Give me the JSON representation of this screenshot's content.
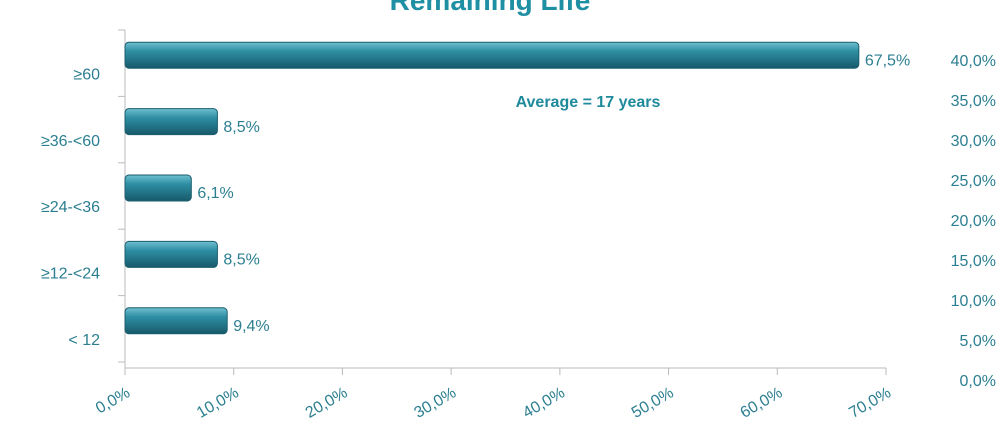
{
  "chart_data": {
    "type": "barh",
    "title": "Remaining Life",
    "annotation": "Average = 17 years",
    "categories": [
      "≥60",
      "≥36-<60",
      "≥24-<36",
      "≥12-<24",
      "< 12"
    ],
    "values": [
      67.5,
      8.5,
      6.1,
      8.5,
      9.4
    ],
    "value_labels": [
      "67,5%",
      "8,5%",
      "6,1%",
      "8,5%",
      "9,4%"
    ],
    "color": "#2e8ea3",
    "xlim": [
      0,
      70
    ],
    "xticks": [
      {
        "value": 0,
        "label": "0,0%"
      },
      {
        "value": 10,
        "label": "10,0%"
      },
      {
        "value": 20,
        "label": "20,0%"
      },
      {
        "value": 30,
        "label": "30,0%"
      },
      {
        "value": 40,
        "label": "40,0%"
      },
      {
        "value": 50,
        "label": "50,0%"
      },
      {
        "value": 60,
        "label": "60,0%"
      },
      {
        "value": 70,
        "label": "70,0%"
      }
    ],
    "y2lim": [
      0,
      40
    ],
    "y2ticks": [
      {
        "value": 0,
        "label": "0,0%"
      },
      {
        "value": 5,
        "label": "5,0%"
      },
      {
        "value": 10,
        "label": "10,0%"
      },
      {
        "value": 15,
        "label": "15,0%"
      },
      {
        "value": 20,
        "label": "20,0%"
      },
      {
        "value": 25,
        "label": "25,0%"
      },
      {
        "value": 30,
        "label": "30,0%"
      },
      {
        "value": 35,
        "label": "35,0%"
      },
      {
        "value": 40,
        "label": "40,0%"
      }
    ]
  }
}
